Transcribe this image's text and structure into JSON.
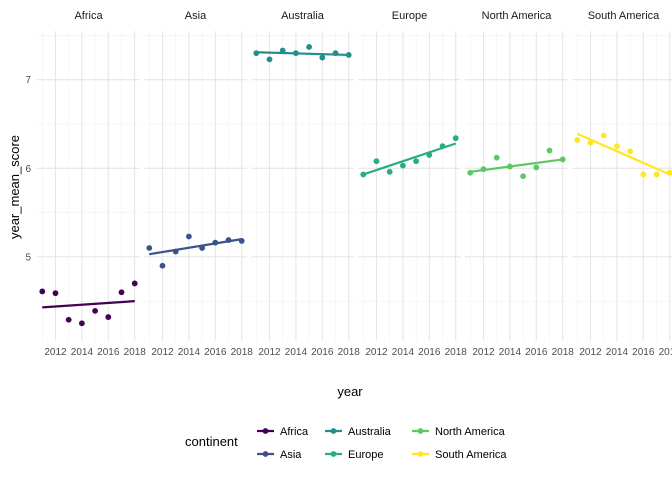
{
  "chart_data": {
    "type": "scatter",
    "facet_by": "continent",
    "xlabel": "year",
    "ylabel": "year_mean_score",
    "xlim": [
      2010.6,
      2018.4
    ],
    "ylim": [
      4.05,
      7.55
    ],
    "x_ticks": [
      2012,
      2014,
      2016,
      2018
    ],
    "x_tick_labels": [
      "2012",
      "2014",
      "2016",
      "2018"
    ],
    "y_ticks": [
      5,
      6,
      7
    ],
    "y_tick_labels": [
      "5",
      "6",
      "7"
    ],
    "grid": true,
    "legend": {
      "title": "continent",
      "position": "bottom"
    },
    "series": [
      {
        "name": "Africa",
        "color": "#440154",
        "x": [
          2011,
          2012,
          2013,
          2014,
          2015,
          2016,
          2017,
          2018
        ],
        "y": [
          4.61,
          4.59,
          4.29,
          4.25,
          4.39,
          4.32,
          4.6,
          4.7
        ],
        "trend": [
          [
            2011,
            4.43
          ],
          [
            2018,
            4.5
          ]
        ]
      },
      {
        "name": "Asia",
        "color": "#3B528B",
        "x": [
          2011,
          2012,
          2013,
          2014,
          2015,
          2016,
          2017,
          2018
        ],
        "y": [
          5.1,
          4.9,
          5.06,
          5.23,
          5.1,
          5.16,
          5.19,
          5.18
        ],
        "trend": [
          [
            2011,
            5.03
          ],
          [
            2018,
            5.2
          ]
        ]
      },
      {
        "name": "Australia",
        "color": "#21908C",
        "x": [
          2011,
          2012,
          2013,
          2014,
          2015,
          2016,
          2017,
          2018
        ],
        "y": [
          7.3,
          7.23,
          7.33,
          7.3,
          7.37,
          7.25,
          7.3,
          7.28
        ],
        "trend": [
          [
            2011,
            7.31
          ],
          [
            2018,
            7.28
          ]
        ]
      },
      {
        "name": "Europe",
        "color": "#27AD81",
        "x": [
          2011,
          2012,
          2013,
          2014,
          2015,
          2016,
          2017,
          2018
        ],
        "y": [
          5.93,
          6.08,
          5.96,
          6.03,
          6.08,
          6.15,
          6.25,
          6.34
        ],
        "trend": [
          [
            2011,
            5.93
          ],
          [
            2018,
            6.28
          ]
        ]
      },
      {
        "name": "North America",
        "color": "#5DC863",
        "x": [
          2011,
          2012,
          2013,
          2014,
          2015,
          2016,
          2017,
          2018
        ],
        "y": [
          5.95,
          5.99,
          6.12,
          6.02,
          5.91,
          6.01,
          6.2,
          6.1
        ],
        "trend": [
          [
            2011,
            5.96
          ],
          [
            2018,
            6.1
          ]
        ]
      },
      {
        "name": "South America",
        "color": "#FDE725",
        "x": [
          2011,
          2012,
          2013,
          2014,
          2015,
          2016,
          2017,
          2018
        ],
        "y": [
          6.32,
          6.29,
          6.37,
          6.25,
          6.19,
          5.93,
          5.93,
          5.95
        ],
        "trend": [
          [
            2011,
            6.39
          ],
          [
            2018,
            5.93
          ]
        ]
      }
    ]
  }
}
